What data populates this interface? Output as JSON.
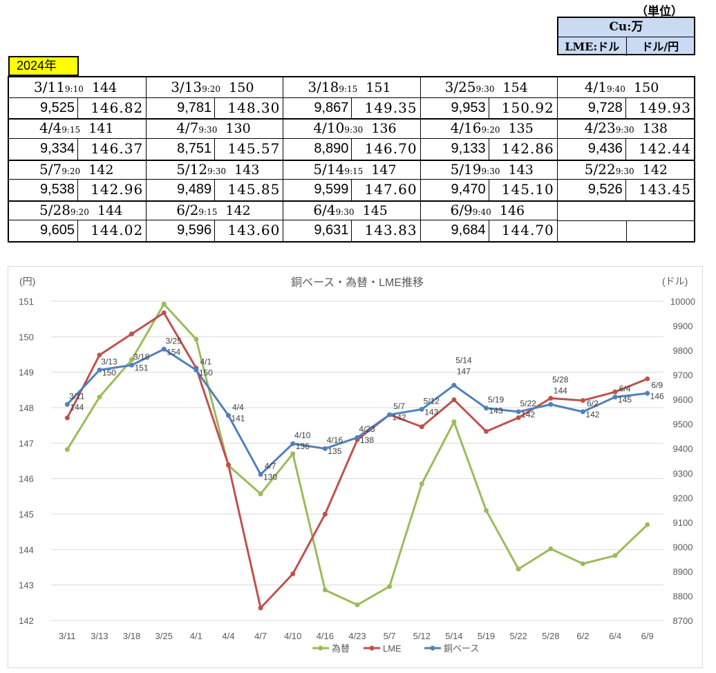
{
  "unit": {
    "caption": "（単位）",
    "cu": "Cu:万",
    "lme": "LME:ドル",
    "fx": "ドル/円"
  },
  "year_label": "2024年",
  "table": [
    {
      "date": "3/11",
      "time": "9:10",
      "cu": "144",
      "lme": "9,525",
      "fx": "146.82"
    },
    {
      "date": "3/13",
      "time": "9:20",
      "cu": "150",
      "lme": "9,781",
      "fx": "148.30"
    },
    {
      "date": "3/18",
      "time": "9:15",
      "cu": "151",
      "lme": "9,867",
      "fx": "149.35"
    },
    {
      "date": "3/25",
      "time": "9:30",
      "cu": "154",
      "lme": "9,953",
      "fx": "150.92"
    },
    {
      "date": "4/1",
      "time": "9:40",
      "cu": "150",
      "lme": "9,728",
      "fx": "149.93"
    },
    {
      "date": "4/4",
      "time": "9:15",
      "cu": "141",
      "lme": "9,334",
      "fx": "146.37"
    },
    {
      "date": "4/7",
      "time": "9:30",
      "cu": "130",
      "lme": "8,751",
      "fx": "145.57"
    },
    {
      "date": "4/10",
      "time": "9:30",
      "cu": "136",
      "lme": "8,890",
      "fx": "146.70"
    },
    {
      "date": "4/16",
      "time": "9:20",
      "cu": "135",
      "lme": "9,133",
      "fx": "142.86"
    },
    {
      "date": "4/23",
      "time": "9:30",
      "cu": "138",
      "lme": "9,436",
      "fx": "142.44"
    },
    {
      "date": "5/7",
      "time": "9:20",
      "cu": "142",
      "lme": "9,538",
      "fx": "142.96"
    },
    {
      "date": "5/12",
      "time": "9:30",
      "cu": "143",
      "lme": "9,489",
      "fx": "145.85"
    },
    {
      "date": "5/14",
      "time": "9:15",
      "cu": "147",
      "lme": "9,599",
      "fx": "147.60"
    },
    {
      "date": "5/19",
      "time": "9:30",
      "cu": "143",
      "lme": "9,470",
      "fx": "145.10"
    },
    {
      "date": "5/22",
      "time": "9:30",
      "cu": "142",
      "lme": "9,526",
      "fx": "143.45"
    },
    {
      "date": "5/28",
      "time": "9:20",
      "cu": "144",
      "lme": "9,605",
      "fx": "144.02"
    },
    {
      "date": "6/2",
      "time": "9:15",
      "cu": "142",
      "lme": "9,596",
      "fx": "143.60"
    },
    {
      "date": "6/4",
      "time": "9:30",
      "cu": "145",
      "lme": "9,631",
      "fx": "143.83"
    },
    {
      "date": "6/9",
      "time": "9:40",
      "cu": "146",
      "lme": "9,684",
      "fx": "144.70"
    }
  ],
  "chart_data": {
    "type": "line",
    "title": "銅ベース・為替・LME推移",
    "ylabel_left": "(円)",
    "ylabel_right": "(ドル)",
    "ylim_left": [
      142,
      151
    ],
    "ylim_right": [
      8700,
      10000
    ],
    "yticks_left": [
      142,
      143,
      144,
      145,
      146,
      147,
      148,
      149,
      150,
      151
    ],
    "yticks_right": [
      8700,
      8800,
      8900,
      9000,
      9100,
      9200,
      9300,
      9400,
      9500,
      9600,
      9700,
      9800,
      9900,
      10000
    ],
    "categories": [
      "3/11",
      "3/13",
      "3/18",
      "3/25",
      "4/1",
      "4/4",
      "4/7",
      "4/10",
      "4/16",
      "4/23",
      "5/7",
      "5/12",
      "5/14",
      "5/19",
      "5/22",
      "5/28",
      "6/2",
      "6/4",
      "6/9"
    ],
    "grid": true,
    "legend_position": "bottom",
    "series": [
      {
        "name": "為替",
        "axis": "left",
        "color": "#9bbb59",
        "values": [
          146.82,
          148.3,
          149.35,
          150.92,
          149.93,
          146.37,
          145.57,
          146.7,
          142.86,
          142.44,
          142.96,
          145.85,
          147.6,
          145.1,
          143.45,
          144.02,
          143.6,
          143.83,
          144.7
        ]
      },
      {
        "name": "LME",
        "axis": "right",
        "color": "#c0504d",
        "values": [
          9525,
          9781,
          9867,
          9953,
          9728,
          9334,
          8751,
          8890,
          9133,
          9436,
          9538,
          9489,
          9599,
          9470,
          9526,
          9605,
          9596,
          9631,
          9684
        ]
      },
      {
        "name": "銅ベース",
        "axis": "right",
        "color": "#4f81bd",
        "values": [
          9580,
          9720,
          9740,
          9805,
          9720,
          9535,
          9295,
          9420,
          9400,
          9445,
          9538,
          9560,
          9658,
          9565,
          9550,
          9580,
          9550,
          9610,
          9625
        ],
        "labels": [
          [
            "3/11",
            "144"
          ],
          [
            "3/13",
            "150"
          ],
          [
            "3/18",
            "151"
          ],
          [
            "3/25",
            "154"
          ],
          [
            "4/1",
            "150"
          ],
          [
            "4/4",
            "141"
          ],
          [
            "4/7",
            "130"
          ],
          [
            "4/10",
            "136"
          ],
          [
            "4/16",
            "135"
          ],
          [
            "4/23",
            "138"
          ],
          [
            "5/7",
            "142"
          ],
          [
            "5/12",
            "143"
          ],
          [
            "5/14",
            "147"
          ],
          [
            "5/19",
            "143"
          ],
          [
            "5/22",
            "142"
          ],
          [
            "5/28",
            "144"
          ],
          [
            "6/2",
            "142"
          ],
          [
            "6/4",
            "145"
          ],
          [
            "6/9",
            "146"
          ]
        ]
      }
    ]
  }
}
